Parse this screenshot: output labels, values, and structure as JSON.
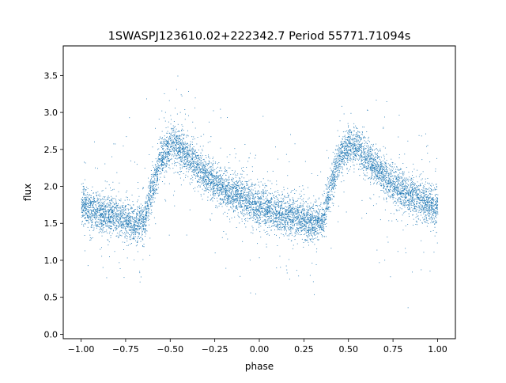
{
  "chart_data": {
    "type": "scatter",
    "title": "1SWASPJ123610.02+222342.7 Period 55771.71094s",
    "xlabel": "phase",
    "ylabel": "flux",
    "xlim": [
      -1.1,
      1.1
    ],
    "ylim": [
      -0.06,
      3.9
    ],
    "x_ticks": [
      -1.0,
      -0.75,
      -0.5,
      -0.25,
      0.0,
      0.25,
      0.5,
      0.75,
      1.0
    ],
    "x_tick_labels": [
      "−1.00",
      "−0.75",
      "−0.50",
      "−0.25",
      "0.00",
      "0.25",
      "0.50",
      "0.75",
      "1.00"
    ],
    "y_ticks": [
      0.0,
      0.5,
      1.0,
      1.5,
      2.0,
      2.5,
      3.0,
      3.5
    ],
    "y_tick_labels": [
      "0.0",
      "0.5",
      "1.0",
      "1.5",
      "2.0",
      "2.5",
      "3.0",
      "3.5"
    ],
    "grid": false,
    "legend": "none",
    "point_color": "#1f77b4",
    "phase_range": [
      -1.0,
      1.0
    ],
    "light_curve": {
      "phase": [
        0.0,
        0.1,
        0.2,
        0.3,
        0.35,
        0.4,
        0.45,
        0.5,
        0.55,
        0.6,
        0.7,
        0.8,
        0.9,
        1.0
      ],
      "flux": [
        1.75,
        1.65,
        1.6,
        1.5,
        1.55,
        2.0,
        2.4,
        2.55,
        2.55,
        2.4,
        2.15,
        1.95,
        1.85,
        1.7
      ]
    },
    "scatter_sigma": 0.13
  }
}
